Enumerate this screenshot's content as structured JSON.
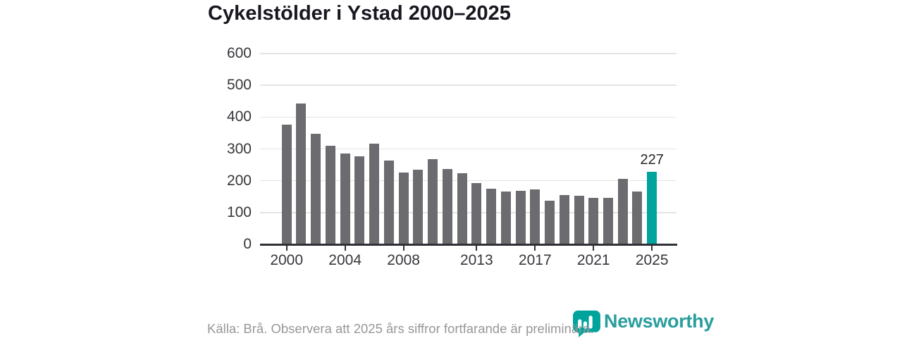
{
  "title": "Cykelstölder i Ystad 2000–2025",
  "source_note": "Källa: Brå. Observera att 2025 års siffror fortfarande är preliminära.",
  "branding": {
    "wordmark": "Newsworthy",
    "wordmark_color": "#2a9d9d",
    "icon": "newsworthy-badge-bar-chart-icon",
    "icon_color": "#00a49c"
  },
  "colors": {
    "bar": "#6c6c70",
    "highlight": "#00a49c",
    "grid": "#e4e4e4",
    "axis": "#303036",
    "tick_text": "#37373c",
    "title_text": "#17171f",
    "source_text": "#97979a",
    "annotation_text": "#26262c"
  },
  "chart_data": {
    "type": "bar",
    "title": "Cykelstölder i Ystad 2000–2025",
    "x": [
      2000,
      2001,
      2002,
      2003,
      2004,
      2005,
      2006,
      2007,
      2008,
      2009,
      2010,
      2011,
      2012,
      2013,
      2014,
      2015,
      2016,
      2017,
      2018,
      2019,
      2020,
      2021,
      2022,
      2023,
      2024,
      2025
    ],
    "values": [
      377,
      443,
      348,
      311,
      285,
      277,
      317,
      264,
      226,
      234,
      268,
      238,
      224,
      192,
      174,
      166,
      168,
      172,
      138,
      155,
      153,
      146,
      146,
      205,
      165,
      227
    ],
    "highlight_index": 25,
    "highlight_label": "227",
    "ylim": [
      0,
      600
    ],
    "yticks": [
      0,
      100,
      200,
      300,
      400,
      500,
      600
    ],
    "xticks": [
      2000,
      2004,
      2008,
      2013,
      2017,
      2021,
      2025
    ],
    "xlabel": "",
    "ylabel": "",
    "grid": true,
    "legend": "none"
  }
}
